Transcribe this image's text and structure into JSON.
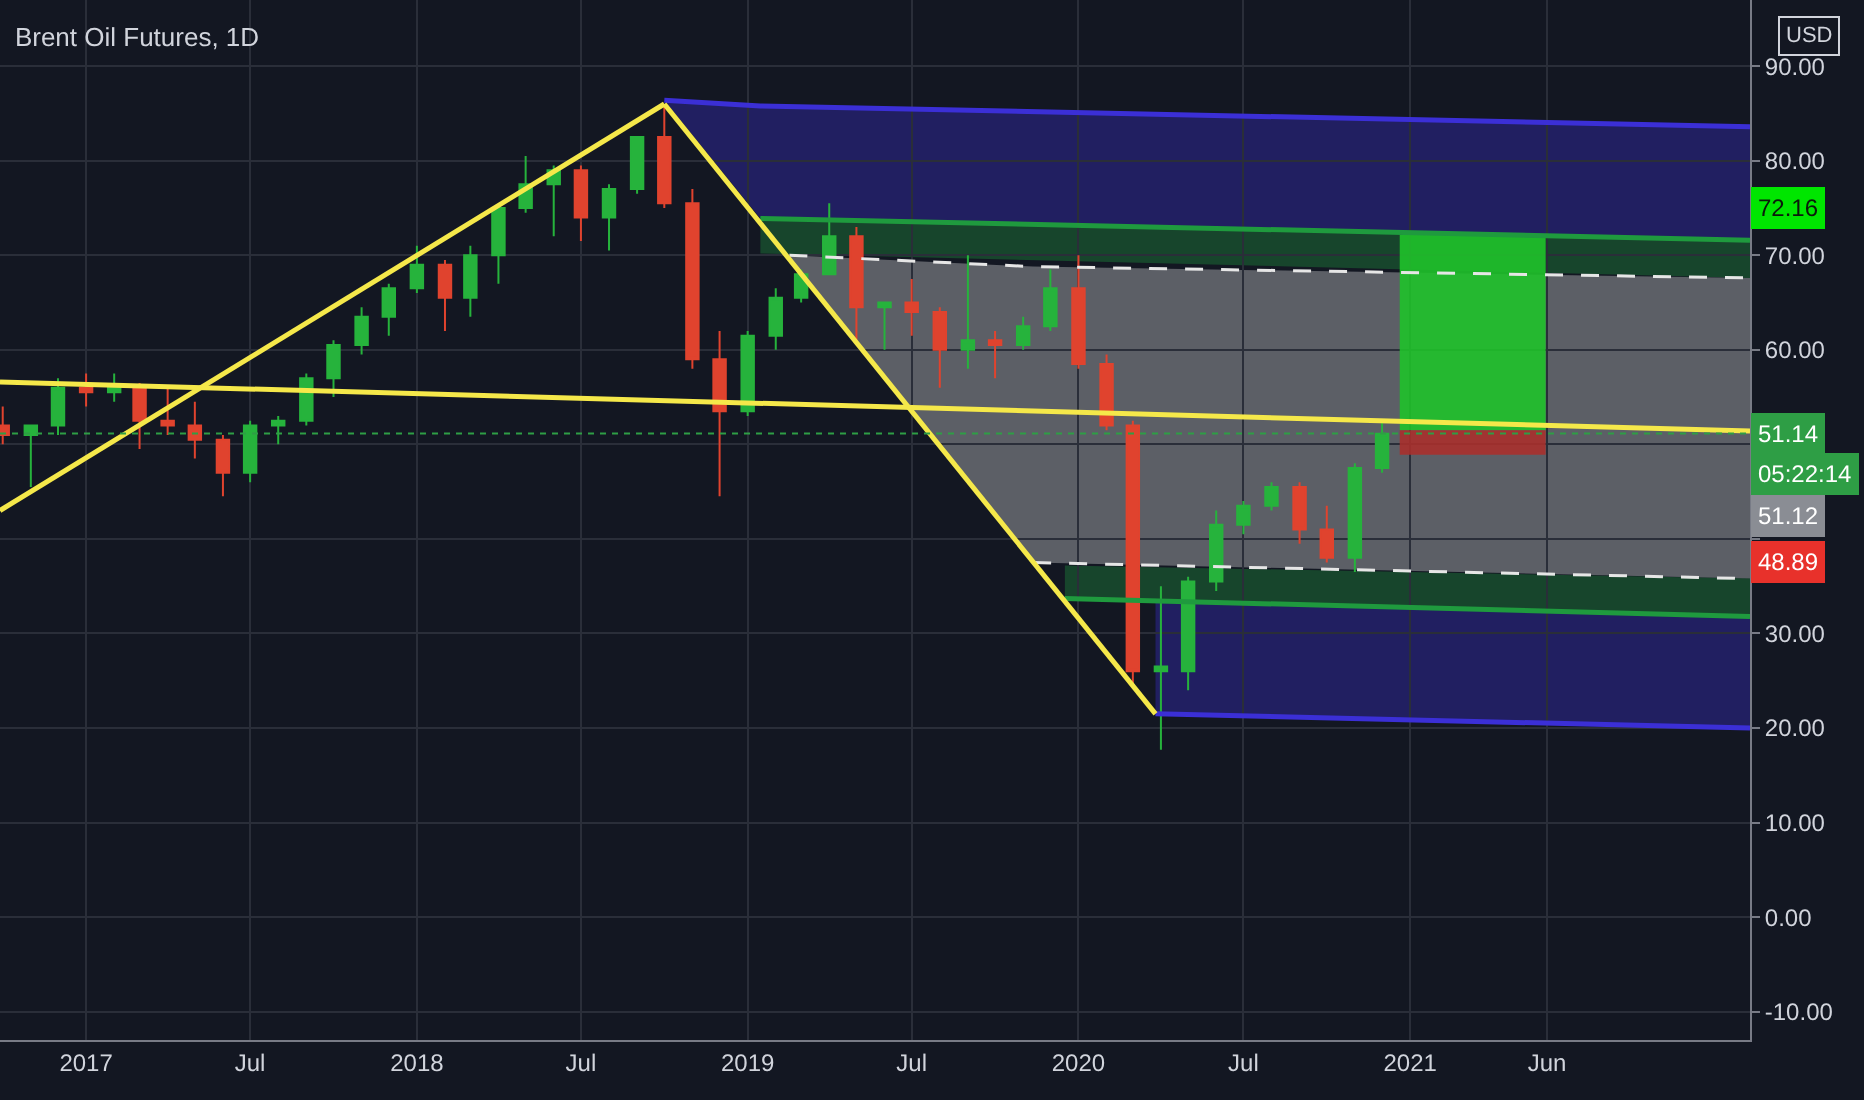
{
  "chart_data": {
    "type": "candlestick",
    "title": "Brent Oil Futures, 1D",
    "annotations": [
      "USD",
      "05:22:14",
      "72.16",
      {
        "text": "51.12",
        "y": 51.12
      },
      "48.89"
    ],
    "x": [
      "2016-10",
      "2016-11",
      "2016-12",
      "2017-01",
      "2017-02",
      "2017-03",
      "2017-04",
      "2017-05",
      "2017-06",
      "2017-07",
      "2017-08",
      "2017-09",
      "2017-10",
      "2017-11",
      "2017-12",
      "2018-01",
      "2018-02",
      "2018-03",
      "2018-04",
      "2018-05",
      "2018-06",
      "2018-07",
      "2018-08",
      "2018-09",
      "2018-10",
      "2018-11",
      "2018-12",
      "2019-01",
      "2019-02",
      "2019-03",
      "2019-04",
      "2019-05",
      "2019-06",
      "2019-07",
      "2019-08",
      "2019-09",
      "2019-10",
      "2019-11",
      "2019-12",
      "2020-01",
      "2020-02",
      "2020-03",
      "2020-04",
      "2020-05",
      "2020-06",
      "2020-07",
      "2020-08",
      "2020-09",
      "2020-10",
      "2020-11",
      "2020-12"
    ],
    "ohlc": [
      [
        52,
        54,
        50,
        51
      ],
      [
        51,
        52,
        45.5,
        52
      ],
      [
        52,
        57,
        51,
        56
      ],
      [
        56,
        57.5,
        54,
        55.5
      ],
      [
        55.5,
        57.5,
        54.5,
        56
      ],
      [
        56,
        56.5,
        49.5,
        52.5
      ],
      [
        52.5,
        56,
        51,
        52
      ],
      [
        52,
        54.5,
        48.5,
        50.5
      ],
      [
        50.5,
        51,
        44.5,
        47
      ],
      [
        47,
        52.5,
        46,
        52
      ],
      [
        52,
        53,
        50,
        52.5
      ],
      [
        52.5,
        57.5,
        52,
        57
      ],
      [
        57,
        61,
        55,
        60.5
      ],
      [
        60.5,
        64.5,
        59.5,
        63.5
      ],
      [
        63.5,
        67,
        61.5,
        66.5
      ],
      [
        66.5,
        71,
        66,
        69
      ],
      [
        69,
        69.5,
        62,
        65.5
      ],
      [
        65.5,
        71,
        63.5,
        70
      ],
      [
        70,
        75,
        67,
        75
      ],
      [
        75,
        80.5,
        74.5,
        77.5
      ],
      [
        77.5,
        79.5,
        72,
        79
      ],
      [
        79,
        79.5,
        71.5,
        74
      ],
      [
        74,
        77.5,
        70.5,
        77
      ],
      [
        77,
        82.5,
        76.5,
        82.5
      ],
      [
        82.5,
        86,
        75,
        75.5
      ],
      [
        75.5,
        77,
        58,
        59
      ],
      [
        59,
        62,
        44.5,
        53.5
      ],
      [
        53.5,
        62,
        53,
        61.5
      ],
      [
        61.5,
        66.5,
        60,
        65.5
      ],
      [
        65.5,
        68.5,
        65,
        68
      ],
      [
        68,
        75.5,
        68,
        72
      ],
      [
        72,
        73,
        61,
        64.5
      ],
      [
        64.5,
        65,
        60,
        65
      ],
      [
        65,
        67.5,
        61.5,
        64
      ],
      [
        64,
        64.5,
        56,
        60
      ],
      [
        60,
        70,
        58,
        61
      ],
      [
        61,
        62,
        57,
        60.5
      ],
      [
        60.5,
        63.5,
        60,
        62.5
      ],
      [
        62.5,
        68.5,
        62,
        66.5
      ],
      [
        66.5,
        70,
        58,
        58.5
      ],
      [
        58.5,
        59.5,
        51.5,
        52
      ],
      [
        52,
        52.5,
        24.5,
        26
      ],
      [
        26,
        35,
        17.7,
        26.5
      ],
      [
        26,
        36,
        24,
        35.5
      ],
      [
        35.5,
        43,
        34.5,
        41.5
      ],
      [
        41.5,
        44,
        40.5,
        43.5
      ],
      [
        43.5,
        46,
        43,
        45.5
      ],
      [
        45.5,
        46,
        39.5,
        41
      ],
      [
        41,
        43.5,
        37.5,
        38
      ],
      [
        38,
        48,
        36.5,
        47.5
      ],
      [
        47.5,
        52.5,
        47,
        51.12
      ]
    ],
    "colors": [
      "#e0432e",
      "#26b33c",
      "#26b33c",
      "#e0432e",
      "#26b33c",
      "#e0432e",
      "#e0432e",
      "#e0432e",
      "#e0432e",
      "#26b33c",
      "#26b33c",
      "#26b33c",
      "#26b33c",
      "#26b33c",
      "#26b33c",
      "#26b33c",
      "#e0432e",
      "#26b33c",
      "#26b33c",
      "#26b33c",
      "#26b33c",
      "#e0432e",
      "#26b33c",
      "#26b33c",
      "#e0432e",
      "#e0432e",
      "#e0432e",
      "#26b33c",
      "#26b33c",
      "#26b33c",
      "#26b33c",
      "#e0432e",
      "#26b33c",
      "#e0432e",
      "#e0432e",
      "#26b33c",
      "#e0432e",
      "#26b33c",
      "#26b33c",
      "#e0432e",
      "#e0432e",
      "#e0432e",
      "#26b33c",
      "#26b33c",
      "#26b33c",
      "#26b33c",
      "#26b33c",
      "#e0432e",
      "#e0432e",
      "#26b33c",
      "#26b33c"
    ],
    "series": [
      {
        "type": "line",
        "x": [
          "2018-10-01",
          "2019-01-15",
          "2022-01-11"
        ],
        "values": [
          86.4,
          85.8,
          83.6
        ],
        "lower": [
          86.4,
          73.9,
          71.6
        ],
        "upper": [
          86.4,
          85.8,
          83.6
        ],
        "color": "#3b2fd6"
      },
      {
        "type": "line",
        "x": [
          "2019-01-15",
          "2022-01-11"
        ],
        "values": [
          73.9,
          71.6
        ],
        "lower": [
          70.2,
          67.6
        ],
        "upper": [
          73.9,
          71.6
        ],
        "color": "#1f9a3e"
      },
      {
        "type": "line",
        "x": [
          "2019-02-16",
          "2019-11-12",
          "2022-01-11"
        ],
        "values": [
          70.0,
          68.8,
          67.6
        ],
        "lower": [
          69.8,
          37.5,
          35.8
        ],
        "upper": [
          70.0,
          68.8,
          67.6
        ],
        "color": "#e6e6e6",
        "line_style": "dashed"
      },
      {
        "type": "line",
        "x": [
          "2019-11-12",
          "2022-01-11"
        ],
        "values": [
          37.5,
          35.8
        ],
        "color": "#e6e6e6",
        "line_style": "dashed"
      },
      {
        "type": "line",
        "x": [
          "2019-12-17",
          "2022-01-11"
        ],
        "values": [
          33.7,
          31.8
        ],
        "lower": [
          33.7,
          31.8
        ],
        "upper": [
          37.2,
          35.8
        ],
        "color": "#1f9a3e"
      },
      {
        "type": "line",
        "x": [
          "2020-03-26",
          "2022-01-11"
        ],
        "values": [
          21.5,
          20.0
        ],
        "lower": [
          21.5,
          20.0
        ],
        "upper": [
          33.3,
          31.8
        ],
        "color": "#3b2fd6"
      },
      {
        "type": "line",
        "x": [
          "2016-09-28",
          "2018-10-01"
        ],
        "values": [
          43.0,
          86.0
        ],
        "color": "#f5e84a"
      },
      {
        "type": "line",
        "x": [
          "2018-10-01",
          "2020-03-26"
        ],
        "values": [
          86.0,
          21.5
        ],
        "color": "#f5e84a"
      },
      {
        "type": "line",
        "x": [
          "2016-09-28",
          "2022-01-11"
        ],
        "values": [
          56.6,
          51.4
        ],
        "color": "#f5e84a"
      },
      {
        "type": "bar",
        "x": [
          "2021-03-11"
        ],
        "values": [
          20.66
        ],
        "base": [
          51.5
        ],
        "color": "#1fc22a"
      },
      {
        "type": "bar",
        "x": [
          "2021-03-11"
        ],
        "values": [
          2.61
        ],
        "base": [
          48.89
        ],
        "color": "#a8302c"
      }
    ],
    "ref_lines": [
      {
        "axis": "y",
        "value": 51.14,
        "label": "51.14",
        "color": "#2e9e45",
        "line_style": "dotted"
      }
    ],
    "xlim": [
      "2016-09-28",
      "2022-01-11"
    ],
    "xticks": [
      {
        "value": "2017-01-01",
        "label": "2017"
      },
      {
        "value": "2017-07-01",
        "label": "Jul"
      },
      {
        "value": "2018-01-01",
        "label": "2018"
      },
      {
        "value": "2018-07-01",
        "label": "Jul"
      },
      {
        "value": "2019-01-01",
        "label": "2019"
      },
      {
        "value": "2019-07-01",
        "label": "Jul"
      },
      {
        "value": "2020-01-01",
        "label": "2020"
      },
      {
        "value": "2020-07-01",
        "label": "Jul"
      },
      {
        "value": "2021-01-01",
        "label": "2021"
      },
      {
        "value": "2021-06-01",
        "label": "Jun"
      }
    ],
    "ylim": [
      -13,
      97
    ],
    "yticks": [
      {
        "value": -10,
        "label": "-10.00"
      },
      {
        "value": 0,
        "label": "0.00"
      },
      {
        "value": 10,
        "label": "10.00"
      },
      {
        "value": 20,
        "label": "20.00"
      },
      {
        "value": 30,
        "label": "30.00"
      },
      {
        "value": 40,
        "label": null
      },
      {
        "value": 50,
        "label": null
      },
      {
        "value": 60,
        "label": "60.00"
      },
      {
        "value": 70,
        "label": "70.00"
      },
      {
        "value": 80,
        "label": "80.00"
      },
      {
        "value": 90,
        "label": "90.00"
      }
    ],
    "grid": true
  }
}
